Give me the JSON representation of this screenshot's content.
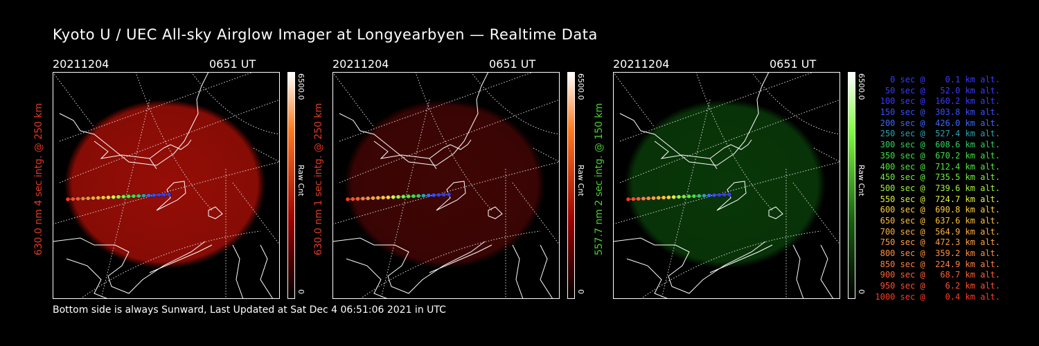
{
  "header": {
    "title": "Kyoto U / UEC All-sky Airglow Imager at Longyearbyen — Realtime Data"
  },
  "footer": {
    "text": "Bottom side is always Sunward, Last Updated at Sat Dec  4 06:51:06 2021 in UTC"
  },
  "panels": [
    {
      "date": "20211204",
      "time": "0651 UT",
      "ylabel": "630.0 nm 4 sec intg. @ 250 km",
      "label_color": "#e03a20",
      "glow_color": "#b01008",
      "glow_opacity": 0.85,
      "colorbar_max": "6500.0",
      "colorbar_unit": "Raw Cnt",
      "colorbar_min": "0",
      "bar_top_color": "#ff7a20",
      "bar_mid_color": "#a00000"
    },
    {
      "date": "20211204",
      "time": "0651 UT",
      "ylabel": "630.0 nm 1 sec intg. @ 250 km",
      "label_color": "#e03a20",
      "glow_color": "#5a0806",
      "glow_opacity": 0.7,
      "colorbar_max": "6500.0",
      "colorbar_unit": "Raw Cnt",
      "colorbar_min": "0",
      "bar_top_color": "#ff7a20",
      "bar_mid_color": "#a00000"
    },
    {
      "date": "20211204",
      "time": "0651 UT",
      "ylabel": "557.7 nm 2 sec intg. @ 150 km",
      "label_color": "#4ad030",
      "glow_color": "#0c4a0c",
      "glow_opacity": 0.75,
      "colorbar_max": "6500.0",
      "colorbar_unit": "Raw Cnt",
      "colorbar_min": "0",
      "bar_top_color": "#80ff40",
      "bar_mid_color": "#1a6010"
    }
  ],
  "legend": [
    {
      "text": "   0 sec @    0.1 km alt.",
      "color": "#3a3aff"
    },
    {
      "text": "  50 sec @   52.0 km alt.",
      "color": "#3a3aff"
    },
    {
      "text": " 100 sec @  160.2 km alt.",
      "color": "#3a3aff"
    },
    {
      "text": " 150 sec @  303.8 km alt.",
      "color": "#3a50ff"
    },
    {
      "text": " 200 sec @  426.0 km alt.",
      "color": "#3a6aff"
    },
    {
      "text": " 250 sec @  527.4 km alt.",
      "color": "#30a0b0"
    },
    {
      "text": " 300 sec @  608.6 km alt.",
      "color": "#30d060"
    },
    {
      "text": " 350 sec @  670.2 km alt.",
      "color": "#40e040"
    },
    {
      "text": " 400 sec @  712.4 km alt.",
      "color": "#50e840"
    },
    {
      "text": " 450 sec @  735.5 km alt.",
      "color": "#70f040"
    },
    {
      "text": " 500 sec @  739.6 km alt.",
      "color": "#a0f040"
    },
    {
      "text": " 550 sec @  724.7 km alt.",
      "color": "#e0f040"
    },
    {
      "text": " 600 sec @  690.8 km alt.",
      "color": "#ffd040"
    },
    {
      "text": " 650 sec @  637.6 km alt.",
      "color": "#ffc040"
    },
    {
      "text": " 700 sec @  564.9 km alt.",
      "color": "#ffb040"
    },
    {
      "text": " 750 sec @  472.3 km alt.",
      "color": "#ffa040"
    },
    {
      "text": " 800 sec @  359.2 km alt.",
      "color": "#ff9040"
    },
    {
      "text": " 850 sec @  224.9 km alt.",
      "color": "#ff8040"
    },
    {
      "text": " 900 sec @   68.7 km alt.",
      "color": "#ff6030"
    },
    {
      "text": " 950 sec @    6.2 km alt.",
      "color": "#ff5030"
    },
    {
      "text": "1000 sec @    0.4 km alt.",
      "color": "#ff3a20"
    }
  ]
}
